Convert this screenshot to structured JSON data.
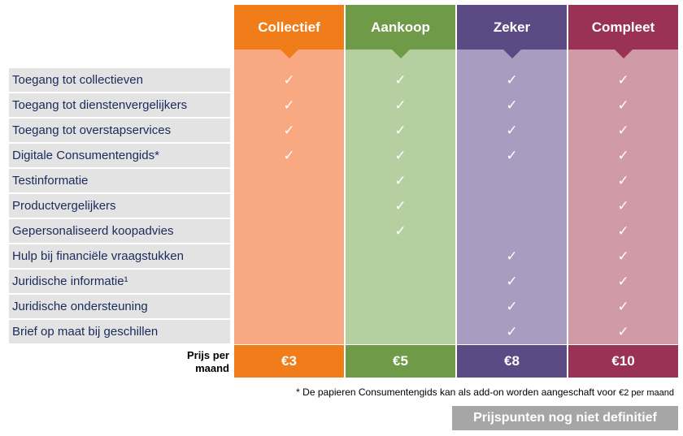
{
  "plans": [
    {
      "name": "Collectief",
      "price": "€3",
      "header_color": "#f07d1a",
      "body_color": "#f9a982",
      "checks": [
        true,
        true,
        true,
        true,
        false,
        false,
        false,
        false,
        false,
        false,
        false
      ]
    },
    {
      "name": "Aankoop",
      "price": "€5",
      "header_color": "#6f9a48",
      "body_color": "#b5cfa0",
      "checks": [
        true,
        true,
        true,
        true,
        true,
        true,
        true,
        false,
        false,
        false,
        false
      ]
    },
    {
      "name": "Zeker",
      "price": "€8",
      "header_color": "#5c4a84",
      "body_color": "#a99cc0",
      "checks": [
        true,
        true,
        true,
        true,
        false,
        false,
        false,
        true,
        true,
        true,
        true
      ]
    },
    {
      "name": "Compleet",
      "price": "€10",
      "header_color": "#9a3256",
      "body_color": "#d19aa7",
      "checks": [
        true,
        true,
        true,
        true,
        true,
        true,
        true,
        true,
        true,
        true,
        true
      ]
    }
  ],
  "features": [
    "Toegang tot collectieven",
    "Toegang tot dienstenvergelijkers",
    "Toegang tot overstapservices",
    "Digitale Consumentengids*",
    "Testinformatie",
    "Productvergelijkers",
    "Gepersonaliseerd koopadvies",
    "Hulp bij financiële vraagstukken",
    "Juridische informatie¹",
    "Juridische ondersteuning",
    "Brief op maat bij geschillen"
  ],
  "check_glyph": "✓",
  "price_label_line1": "Prijs per",
  "price_label_line2": "maand",
  "footnote_main": "* De papieren Consumentengids kan als add-on worden aangeschaft voor",
  "footnote_price": "€2 per maand",
  "stamp": "Prijspunten nog niet definitief"
}
